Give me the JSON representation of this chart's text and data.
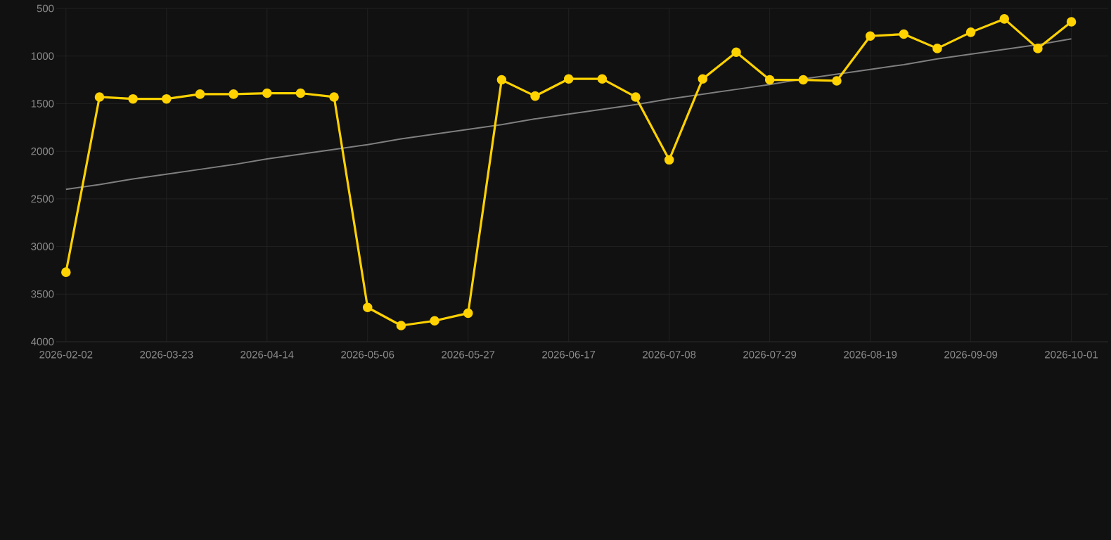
{
  "chart_data": {
    "type": "line",
    "categories": [
      "2026-02-02",
      null,
      null,
      "2026-03-23",
      null,
      null,
      "2026-04-14",
      null,
      null,
      "2026-05-06",
      null,
      null,
      "2026-05-27",
      null,
      null,
      "2026-06-17",
      null,
      null,
      "2026-07-08",
      null,
      null,
      "2026-07-29",
      null,
      null,
      "2026-08-19",
      null,
      null,
      "2026-09-09",
      null,
      null,
      "2026-10-01"
    ],
    "series": [
      {
        "color": "#ffd200",
        "marker": "circle",
        "values": [
          3270,
          1430,
          1450,
          1450,
          1400,
          1400,
          1390,
          1390,
          1430,
          3640,
          3830,
          3780,
          3700,
          1250,
          1420,
          1240,
          1240,
          1430,
          2090,
          1240,
          960,
          1250,
          1250,
          1260,
          790,
          770,
          920,
          750,
          610,
          920,
          640
        ]
      },
      {
        "type": "line",
        "color": "#7f7f7f",
        "marker": "none",
        "values": [
          2400,
          2350,
          2290,
          2240,
          2190,
          2140,
          2080,
          2030,
          1980,
          1930,
          1870,
          1820,
          1770,
          1720,
          1660,
          1610,
          1560,
          1510,
          1450,
          1400,
          1350,
          1300,
          1240,
          1190,
          1140,
          1090,
          1030,
          980,
          930,
          880,
          820
        ]
      }
    ],
    "ylim": [
      4000,
      500
    ],
    "yticks": [
      500,
      1000,
      1500,
      2000,
      2500,
      3000,
      3500,
      4000
    ],
    "grid": true,
    "legend": false
  }
}
